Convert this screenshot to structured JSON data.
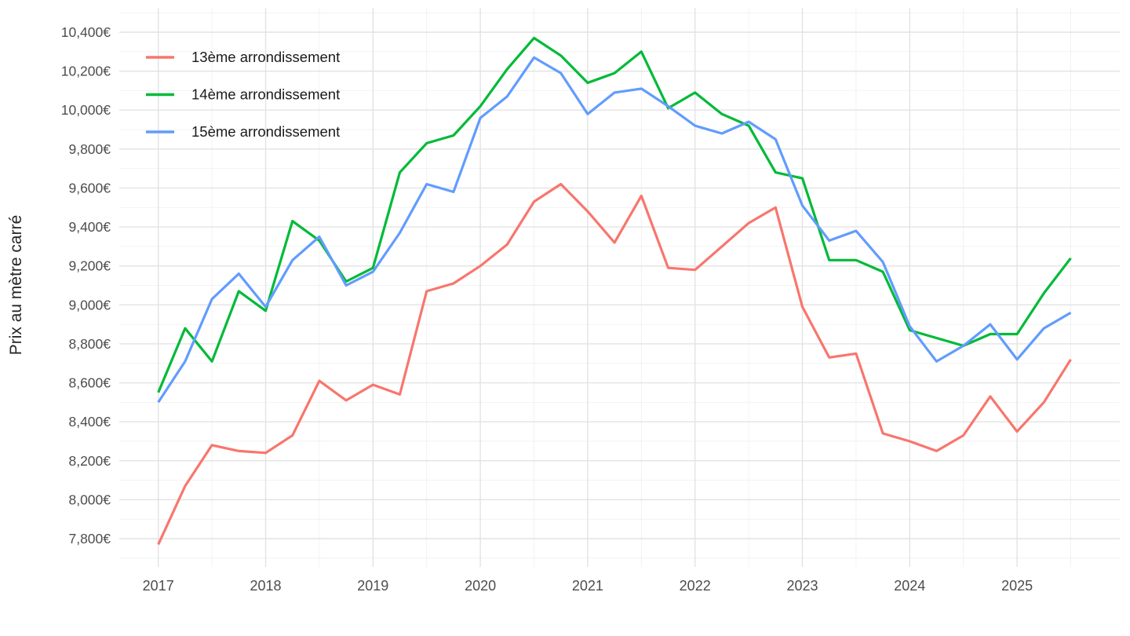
{
  "chart_data": {
    "type": "line",
    "title": "",
    "ylabel": "Prix au mètre carré",
    "xlabel": "",
    "x_unit": "trimestre (année décimale)",
    "x": [
      2017.0,
      2017.25,
      2017.5,
      2017.75,
      2018.0,
      2018.25,
      2018.5,
      2018.75,
      2019.0,
      2019.25,
      2019.5,
      2019.75,
      2020.0,
      2020.25,
      2020.5,
      2020.75,
      2021.0,
      2021.25,
      2021.5,
      2021.75,
      2022.0,
      2022.25,
      2022.5,
      2022.75,
      2023.0,
      2023.25,
      2023.5,
      2023.75,
      2024.0,
      2024.25,
      2024.5,
      2024.75,
      2025.0,
      2025.25,
      2025.5
    ],
    "series": [
      {
        "name": "13ème arrondissement",
        "color": "#F8766D",
        "values": [
          7770,
          8070,
          8280,
          8250,
          8240,
          8330,
          8610,
          8510,
          8590,
          8540,
          9070,
          9110,
          9200,
          9310,
          9530,
          9620,
          9480,
          9320,
          9560,
          9190,
          9180,
          9300,
          9420,
          9500,
          8990,
          8730,
          8750,
          8340,
          8300,
          8250,
          8330,
          8530,
          8350,
          8500,
          8720
        ]
      },
      {
        "name": "14ème arrondissement",
        "color": "#00BA38",
        "values": [
          8550,
          8880,
          8710,
          9070,
          8970,
          9430,
          9330,
          9120,
          9190,
          9680,
          9830,
          9870,
          10020,
          10210,
          10370,
          10280,
          10140,
          10190,
          10300,
          10010,
          10090,
          9980,
          9920,
          9680,
          9650,
          9230,
          9230,
          9170,
          8870,
          8830,
          8790,
          8850,
          8850,
          9060,
          9240
        ]
      },
      {
        "name": "15ème arrondissement",
        "color": "#619CFF",
        "values": [
          8500,
          8710,
          9030,
          9160,
          8990,
          9230,
          9350,
          9100,
          9170,
          9370,
          9620,
          9580,
          9960,
          10070,
          10270,
          10190,
          9980,
          10090,
          10110,
          10020,
          9920,
          9880,
          9940,
          9850,
          9510,
          9330,
          9380,
          9220,
          8890,
          8710,
          8790,
          8900,
          8720,
          8880,
          8960
        ]
      }
    ],
    "x_tick_years": [
      2017,
      2018,
      2019,
      2020,
      2021,
      2022,
      2023,
      2024,
      2025
    ],
    "x_tick_labels": [
      "2017",
      "2018",
      "2019",
      "2020",
      "2021",
      "2022",
      "2023",
      "2024",
      "2025"
    ],
    "y_tick_values": [
      7800,
      8000,
      8200,
      8400,
      8600,
      8800,
      9000,
      9200,
      9400,
      9600,
      9800,
      10000,
      10200,
      10400
    ],
    "y_tick_labels": [
      "7,800€",
      "8,000€",
      "8,200€",
      "8,400€",
      "8,600€",
      "8,800€",
      "9,000€",
      "9,200€",
      "9,400€",
      "9,600€",
      "9,800€",
      "10,000€",
      "10,200€",
      "10,400€"
    ],
    "ylim": [
      7700,
      10500
    ],
    "xlim": [
      2016.65,
      2025.96
    ],
    "grid": "major+minor",
    "legend_position": "inside-top-left",
    "colors": {
      "grid_major": "#E3E3E3",
      "grid_minor": "#F2F2F2",
      "tick_text": "#4D4D4D",
      "axis_title_text": "#262626",
      "legend_text": "#1A1A1A",
      "background": "#FFFFFF"
    }
  }
}
